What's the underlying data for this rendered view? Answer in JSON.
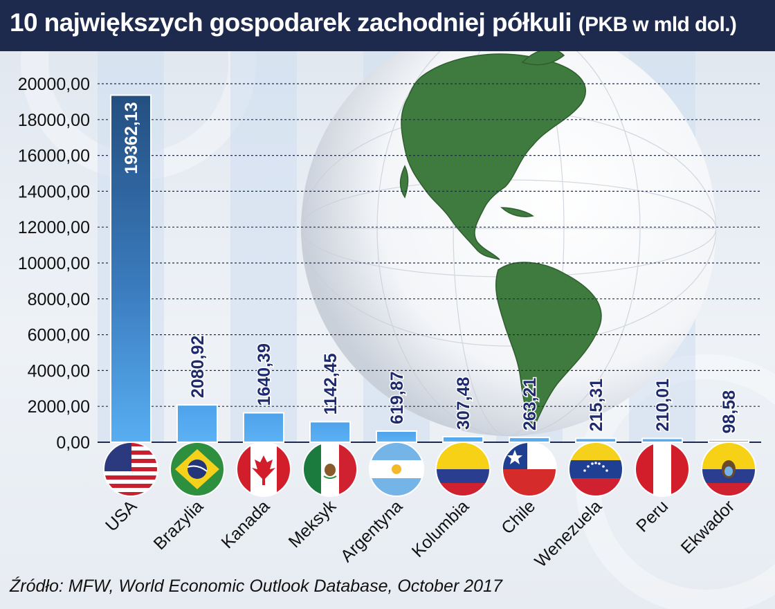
{
  "header": {
    "title": "10 największych gospodarek zachodniej półkuli",
    "subtitle": "(PKB w mld dol.)"
  },
  "chart_data": {
    "type": "bar",
    "categories": [
      "USA",
      "Brazylia",
      "Kanada",
      "Meksyk",
      "Argentyna",
      "Kolumbia",
      "Chile",
      "Wenezuela",
      "Peru",
      "Ekwador"
    ],
    "values": [
      19362.13,
      2080.92,
      1640.39,
      1142.45,
      619.87,
      307.48,
      263.21,
      215.31,
      210.01,
      98.58
    ],
    "value_labels": [
      "19362,13",
      "2080,92",
      "1640,39",
      "1142,45",
      "619,87",
      "307,48",
      "263,21",
      "215,31",
      "210,01",
      "98,58"
    ],
    "y_ticks": [
      0,
      2000,
      4000,
      6000,
      8000,
      10000,
      12000,
      14000,
      16000,
      18000,
      20000
    ],
    "y_tick_labels": [
      "0,00",
      "2000,00",
      "4000,00",
      "6000,00",
      "8000,00",
      "10000,00",
      "12000,00",
      "14000,00",
      "16000,00",
      "18000,00",
      "20000,00"
    ],
    "ylim": [
      0,
      20000
    ],
    "grid": true,
    "legend": "none",
    "flags": [
      "usa-flag-icon",
      "brazil-flag-icon",
      "canada-flag-icon",
      "mexico-flag-icon",
      "argentina-flag-icon",
      "colombia-flag-icon",
      "chile-flag-icon",
      "venezuela-flag-icon",
      "peru-flag-icon",
      "ecuador-flag-icon"
    ],
    "colors": {
      "bar_primary": "#2b5e93",
      "bar": "#55aaf0",
      "value_label": "#1e2a6e",
      "grid": "#1e2a4d"
    }
  },
  "footer": {
    "source": "Źródło: MFW, World Economic Outlook Database, October 2017"
  }
}
